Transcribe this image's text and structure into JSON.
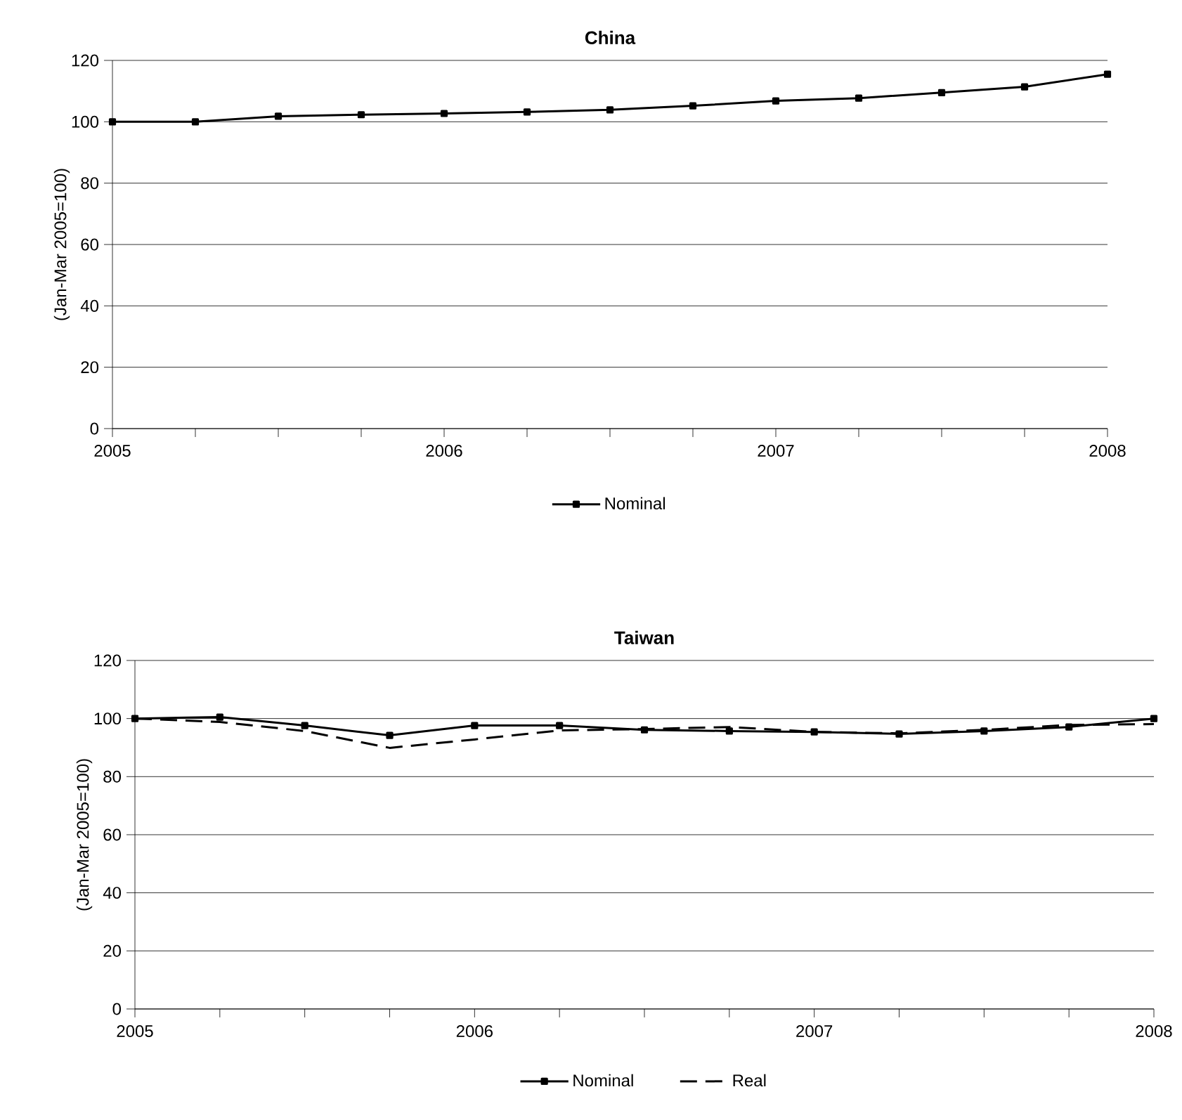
{
  "chart_data": [
    {
      "type": "line",
      "title": "China",
      "ylabel": "(Jan-Mar 2005=100)",
      "x": [
        2005,
        2005.25,
        2005.5,
        2005.75,
        2006,
        2006.25,
        2006.5,
        2006.75,
        2007,
        2007.25,
        2007.5,
        2007.75,
        2008
      ],
      "series": [
        {
          "name": "Nominal",
          "color": "#000000",
          "marker": "square",
          "line_style": "solid",
          "values": [
            100,
            100,
            101.8,
            102.3,
            102.7,
            103.2,
            103.9,
            105.2,
            106.8,
            107.7,
            109.5,
            111.4,
            115.5
          ]
        }
      ],
      "xlim": [
        2005,
        2008
      ],
      "xticks": [
        2005,
        {
          "value": 2005.25,
          "label": null
        },
        {
          "value": 2005.5,
          "label": null
        },
        {
          "value": 2005.75,
          "label": null
        },
        2006,
        {
          "value": 2006.25,
          "label": null
        },
        {
          "value": 2006.5,
          "label": null
        },
        {
          "value": 2006.75,
          "label": null
        },
        2007,
        {
          "value": 2007.25,
          "label": null
        },
        {
          "value": 2007.5,
          "label": null
        },
        {
          "value": 2007.75,
          "label": null
        },
        2008
      ],
      "ylim": [
        0,
        120
      ],
      "yticks": [
        0,
        20,
        40,
        60,
        80,
        100,
        120
      ],
      "grid": "y",
      "legend": "bottom"
    },
    {
      "type": "line",
      "title": "Taiwan",
      "ylabel": "(Jan-Mar 2005=100)",
      "x": [
        2005,
        2005.25,
        2005.5,
        2005.75,
        2006,
        2006.25,
        2006.5,
        2006.75,
        2007,
        2007.25,
        2007.5,
        2007.75,
        2008
      ],
      "series": [
        {
          "name": "Nominal",
          "color": "#000000",
          "marker": "square",
          "line_style": "solid",
          "values": [
            100,
            100.5,
            97.6,
            94.2,
            97.6,
            97.6,
            96.1,
            95.7,
            95.4,
            94.7,
            95.7,
            97.1,
            100
          ]
        },
        {
          "name": "Real",
          "color": "#000000",
          "marker": "none",
          "line_style": "dashed",
          "values": [
            100,
            98.8,
            95.7,
            89.9,
            92.8,
            95.9,
            96.4,
            97.1,
            95.4,
            94.9,
            96.1,
            97.8,
            98.1
          ]
        }
      ],
      "xlim": [
        2005,
        2008
      ],
      "xticks": [
        2005,
        {
          "value": 2005.25,
          "label": null
        },
        {
          "value": 2005.5,
          "label": null
        },
        {
          "value": 2005.75,
          "label": null
        },
        2006,
        {
          "value": 2006.25,
          "label": null
        },
        {
          "value": 2006.5,
          "label": null
        },
        {
          "value": 2006.75,
          "label": null
        },
        2007,
        {
          "value": 2007.25,
          "label": null
        },
        {
          "value": 2007.5,
          "label": null
        },
        {
          "value": 2007.75,
          "label": null
        },
        2008
      ],
      "ylim": [
        0,
        120
      ],
      "yticks": [
        0,
        20,
        40,
        60,
        80,
        100,
        120
      ],
      "grid": "y",
      "legend": "bottom"
    }
  ]
}
